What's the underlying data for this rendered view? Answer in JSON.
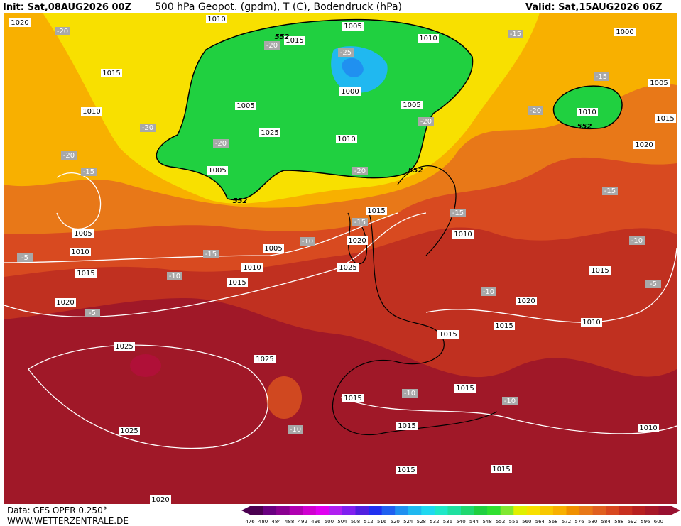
{
  "header": {
    "init": "Init: Sat,08AUG2026 00Z",
    "title": "500 hPa Geopot. (gpdm), T (C), Bodendruck (hPa)",
    "valid": "Valid: Sat,15AUG2026 06Z"
  },
  "footer": {
    "source": "Data: GFS OPER 0.250°",
    "site": "WWW.WETTERZENTRALE.DE"
  },
  "colorbar": {
    "labels": [
      476,
      480,
      484,
      488,
      492,
      496,
      500,
      504,
      508,
      512,
      516,
      520,
      524,
      528,
      532,
      536,
      540,
      544,
      548,
      552,
      556,
      560,
      564,
      568,
      572,
      576,
      580,
      584,
      588,
      592,
      596,
      600
    ],
    "colors": [
      "#4b0050",
      "#6a0080",
      "#8a0090",
      "#b000b0",
      "#d000d0",
      "#e000f0",
      "#b020f0",
      "#8020f0",
      "#5020e0",
      "#2030f0",
      "#2060f0",
      "#2090f0",
      "#20b8f0",
      "#20d8f0",
      "#20e8c8",
      "#20e0a0",
      "#20d870",
      "#20d040",
      "#30e030",
      "#80e830",
      "#e0f000",
      "#f8e000",
      "#f8c800",
      "#f8b000",
      "#f09000",
      "#e87818",
      "#e06020",
      "#d84820",
      "#c83020",
      "#b82020",
      "#a81828",
      "#981030"
    ]
  },
  "pressure_labels": [
    1020,
    1010,
    1005,
    1015,
    1010,
    1000,
    1015,
    1005,
    1010,
    1010,
    1015,
    1020,
    1000,
    1005,
    1005,
    1025,
    1010,
    1005,
    1015,
    1010,
    1005,
    1010,
    1005,
    1020,
    1010,
    1025,
    1015,
    1015,
    1015,
    1020,
    1020,
    1015,
    1015,
    1010,
    1025,
    1025,
    1015,
    1015,
    1025,
    1015,
    1010,
    1015,
    1015,
    1020
  ],
  "temperature_labels": [
    -20,
    -20,
    -25,
    -15,
    -15,
    -20,
    -20,
    -20,
    -20,
    -20,
    -15,
    -20,
    -15,
    -15,
    -15,
    -10,
    -15,
    -5,
    -10,
    -10,
    -5,
    -10,
    -5,
    -10,
    -10,
    -10
  ],
  "geopotential_labels": [
    552,
    552,
    552,
    552
  ]
}
